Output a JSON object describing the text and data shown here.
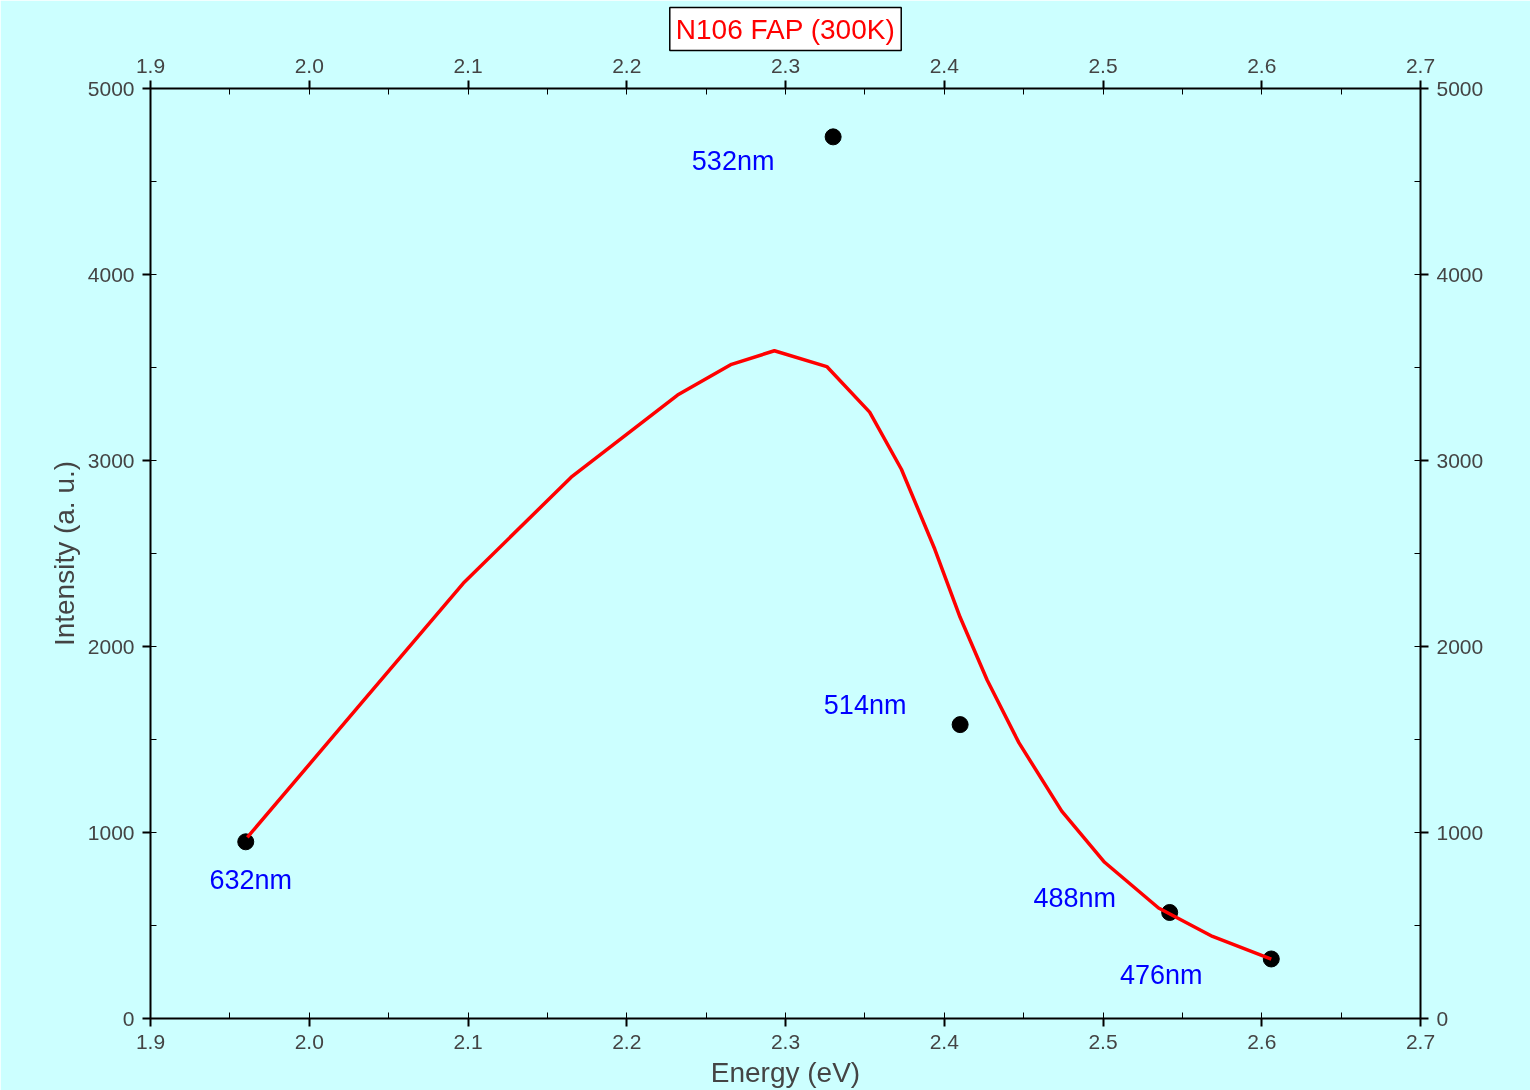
{
  "chart_data": {
    "type": "scatter",
    "title": "N106 FAP (300K)",
    "xlabel": "Energy (eV)",
    "ylabel": "Intensity (a. u.)",
    "x": [
      1.96,
      2.33,
      2.41,
      2.542,
      2.606
    ],
    "series": [
      {
        "color": "#000000",
        "marker": "circle",
        "values": [
          950,
          4740,
          1580,
          570,
          320
        ]
      },
      {
        "type": "line",
        "color": "#ff0000",
        "x": [
          1.961,
          2.03,
          2.097,
          2.165,
          2.232,
          2.266,
          2.293,
          2.326,
          2.353,
          2.373,
          2.394,
          2.41,
          2.427,
          2.447,
          2.474,
          2.501,
          2.535,
          2.569,
          2.606
        ],
        "values": [
          974,
          1667,
          2340,
          2910,
          3352,
          3517,
          3590,
          3505,
          3260,
          2953,
          2524,
          2157,
          1820,
          1483,
          1115,
          840,
          594,
          441,
          319
        ]
      }
    ],
    "annotations": [
      {
        "text": "632nm",
        "x": 1.96,
        "y": 950
      },
      {
        "text": "532nm",
        "x": 2.33,
        "y": 4740
      },
      {
        "text": "514nm",
        "x": 2.41,
        "y": 1580
      },
      {
        "text": "488nm",
        "x": 2.542,
        "y": 570
      },
      {
        "text": "476nm",
        "x": 2.606,
        "y": 320
      }
    ],
    "xlim": [
      1.9,
      2.7
    ],
    "xticks": [
      {
        "value": 1.9,
        "label": "1.9"
      },
      {
        "value": 2.0,
        "label": "2.0"
      },
      {
        "value": 2.1,
        "label": "2.1"
      },
      {
        "value": 2.2,
        "label": "2.2"
      },
      {
        "value": 2.3,
        "label": "2.3"
      },
      {
        "value": 2.4,
        "label": "2.4"
      },
      {
        "value": 2.5,
        "label": "2.5"
      },
      {
        "value": 2.6,
        "label": "2.6"
      },
      {
        "value": 2.7,
        "label": "2.7"
      }
    ],
    "x2lim": [
      1.9,
      2.7
    ],
    "x2ticks": [
      {
        "value": 1.9,
        "label": "1.9"
      },
      {
        "value": 2.0,
        "label": "2.0"
      },
      {
        "value": 2.1,
        "label": "2.1"
      },
      {
        "value": 2.2,
        "label": "2.2"
      },
      {
        "value": 2.3,
        "label": "2.3"
      },
      {
        "value": 2.4,
        "label": "2.4"
      },
      {
        "value": 2.5,
        "label": "2.5"
      },
      {
        "value": 2.6,
        "label": "2.6"
      },
      {
        "value": 2.7,
        "label": "2.7"
      }
    ],
    "ylim": [
      0,
      5000
    ],
    "yticks": [
      0,
      1000,
      2000,
      3000,
      4000,
      5000
    ],
    "y2lim": [
      0,
      5000
    ],
    "y2ticks": [
      0,
      1000,
      2000,
      3000,
      4000,
      5000
    ],
    "grid": false,
    "line_style": "solid"
  }
}
